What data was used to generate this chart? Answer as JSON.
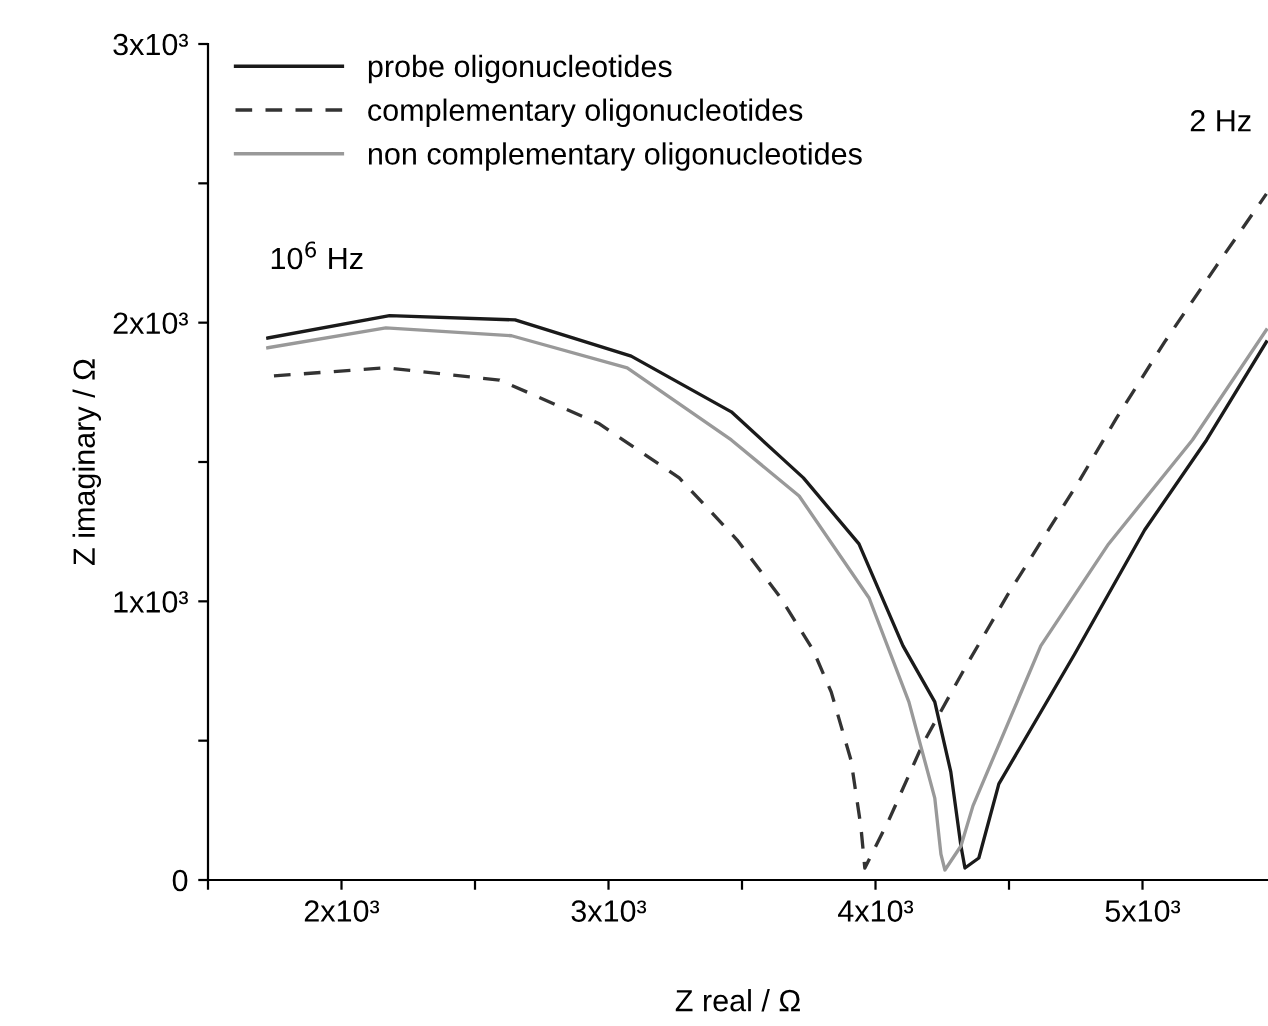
{
  "chart_data": {
    "type": "line",
    "xlabel": "Z real / Ω",
    "ylabel": "Z imaginary / Ω",
    "xlim": [
      1500,
      5470
    ],
    "ylim": [
      0,
      3000
    ],
    "xticks": [
      {
        "value": 1500,
        "label": null
      },
      {
        "value": 2000,
        "label": "2x10³"
      },
      {
        "value": 2500,
        "label": null
      },
      {
        "value": 3000,
        "label": "3x10³"
      },
      {
        "value": 3500,
        "label": null
      },
      {
        "value": 4000,
        "label": "4x10³"
      },
      {
        "value": 4500,
        "label": null
      },
      {
        "value": 5000,
        "label": "5x10³"
      }
    ],
    "yticks": [
      {
        "value": 0,
        "label": "0"
      },
      {
        "value": 500,
        "label": null
      },
      {
        "value": 1000,
        "label": "1x10³"
      },
      {
        "value": 1500,
        "label": null
      },
      {
        "value": 2000,
        "label": "2x10³"
      },
      {
        "value": 2500,
        "label": null
      },
      {
        "value": 3000,
        "label": "3x10³"
      }
    ],
    "legend": "top left",
    "grid": false,
    "marker": "none",
    "series": [
      {
        "name": "probe oligonucleotides",
        "color": "#1a1a1a",
        "line_style": "solid",
        "x": [
          1724,
          2180,
          2650,
          3085,
          3460,
          3640,
          3730,
          3938,
          4103,
          4222,
          4282,
          4320,
          4335,
          4387,
          4462,
          4746,
          5008,
          5240,
          5464
        ],
        "values": [
          1945,
          2025,
          2010,
          1880,
          1680,
          1522,
          1443,
          1206,
          840,
          639,
          388,
          122,
          43,
          79,
          345,
          811,
          1256,
          1579,
          1931
        ]
      },
      {
        "name": "complementary oligonucleotides",
        "color": "#333333",
        "line_style": "dashed",
        "x": [
          1747,
          2166,
          2592,
          2966,
          3265,
          3482,
          3640,
          3766,
          3834,
          3908,
          3945,
          3960,
          4050,
          4177,
          4335,
          4492,
          4761,
          4903,
          5083,
          5277,
          5464
        ],
        "values": [
          1809,
          1838,
          1794,
          1637,
          1443,
          1220,
          1019,
          826,
          675,
          431,
          194,
          43,
          215,
          488,
          761,
          1019,
          1429,
          1658,
          1931,
          2204,
          2462
        ]
      },
      {
        "name": "non complementary oligonucleotides",
        "color": "#999999",
        "line_style": "solid",
        "x": [
          1724,
          2166,
          2637,
          3070,
          3460,
          3714,
          3976,
          4125,
          4222,
          4245,
          4260,
          4320,
          4365,
          4619,
          4873,
          5187,
          5464
        ],
        "values": [
          1910,
          1981,
          1953,
          1838,
          1579,
          1378,
          1012,
          639,
          294,
          93,
          36,
          122,
          266,
          840,
          1206,
          1579,
          1974
        ]
      }
    ],
    "annotations": [
      "10$^{6}$ Hz",
      "2 Hz"
    ]
  }
}
